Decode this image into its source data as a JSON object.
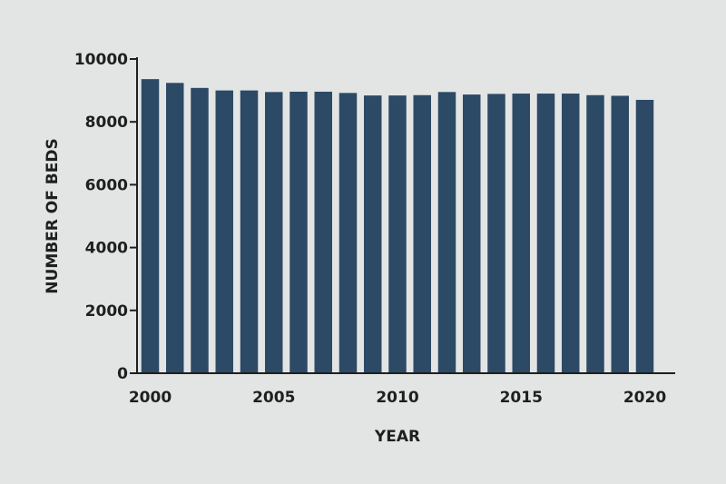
{
  "chart_data": {
    "type": "bar",
    "title": "",
    "xlabel": "YEAR",
    "ylabel": "NUMBER OF BEDS",
    "ylim": [
      0,
      10000
    ],
    "y_ticks": [
      0,
      2000,
      4000,
      6000,
      8000,
      10000
    ],
    "x_tick_labels": [
      "2000",
      "2005",
      "2010",
      "2015",
      "2020"
    ],
    "categories": [
      "2000",
      "2001",
      "2002",
      "2003",
      "2004",
      "2005",
      "2006",
      "2007",
      "2008",
      "2009",
      "2010",
      "2011",
      "2012",
      "2013",
      "2014",
      "2015",
      "2016",
      "2017",
      "2018",
      "2019",
      "2020"
    ],
    "values": [
      9360,
      9240,
      9080,
      9000,
      9000,
      8950,
      8960,
      8960,
      8920,
      8840,
      8840,
      8850,
      8950,
      8870,
      8890,
      8900,
      8900,
      8900,
      8850,
      8830,
      8700
    ],
    "colors": {
      "bar": "#2c4a66",
      "axis": "#1f1f1f",
      "background": "#e3e5e4"
    }
  }
}
